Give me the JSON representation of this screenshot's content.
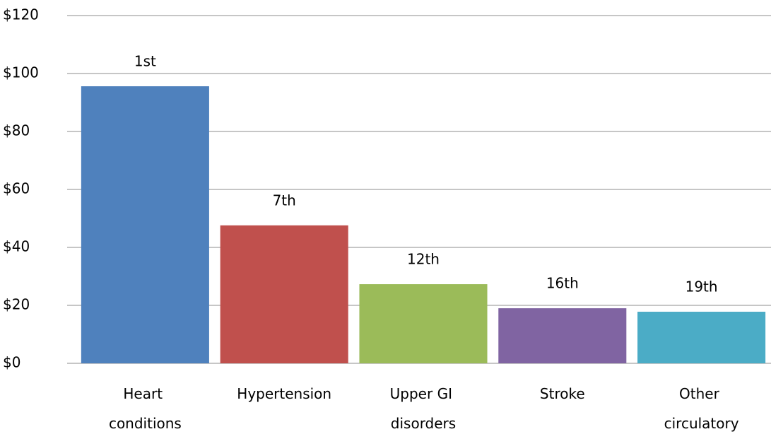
{
  "chart_data": {
    "type": "bar",
    "categories": [
      "Heart conditions",
      "Hypertension",
      "Upper GI disorders",
      "Stroke",
      "Other circulatory"
    ],
    "values": [
      95.6,
      47.6,
      27.3,
      19.0,
      17.8
    ],
    "annotations": [
      "1st",
      "7th",
      "12th",
      "16th",
      "19th"
    ],
    "colors": [
      "#4f81bd",
      "#c0504d",
      "#9bbb59",
      "#8064a2",
      "#4bacc6"
    ],
    "ylim": [
      0,
      120
    ],
    "yticks": [
      {
        "value": 0,
        "label": "$0"
      },
      {
        "value": 20,
        "label": "$20"
      },
      {
        "value": 40,
        "label": "$40"
      },
      {
        "value": 60,
        "label": "$60"
      },
      {
        "value": 80,
        "label": "$80"
      },
      {
        "value": 100,
        "label": "$100"
      },
      {
        "value": 120,
        "label": "$120"
      }
    ],
    "grid": true
  }
}
